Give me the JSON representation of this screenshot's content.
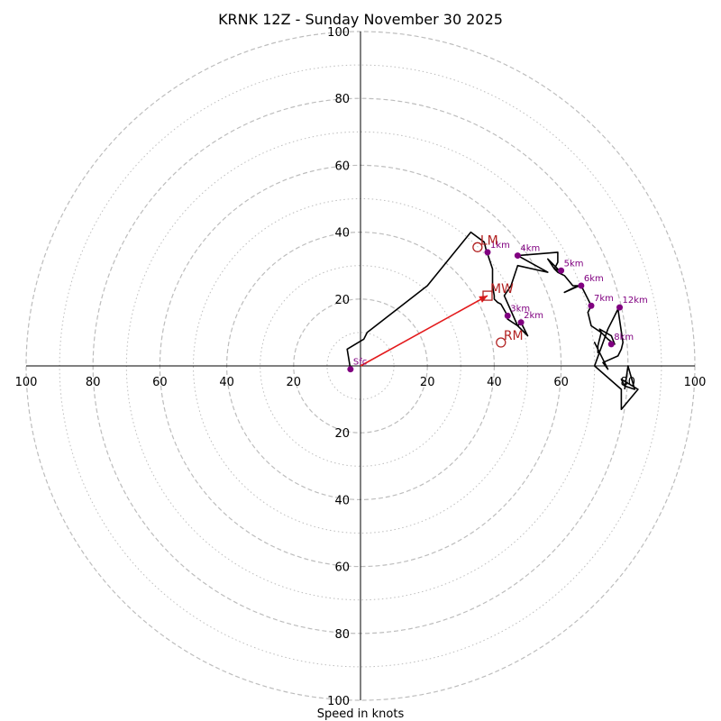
{
  "chart_data": {
    "type": "hodograph",
    "title": "KRNK 12Z - Sunday November 30 2025",
    "xlabel": "Speed in knots",
    "xlim": [
      -100,
      100
    ],
    "ylim": [
      -100,
      100
    ],
    "tick_labels": [
      "100",
      "80",
      "60",
      "40",
      "20",
      "20",
      "40",
      "60",
      "80",
      "100"
    ],
    "tick_values": [
      -100,
      -80,
      -60,
      -40,
      -20,
      20,
      40,
      60,
      80,
      100
    ],
    "ring_major": [
      20,
      40,
      60,
      80,
      100
    ],
    "ring_minor": [
      10,
      30,
      50,
      70,
      90
    ],
    "trace": [
      [
        -3,
        -1
      ],
      [
        -4,
        5
      ],
      [
        1,
        8
      ],
      [
        2,
        10
      ],
      [
        20,
        24
      ],
      [
        33,
        40
      ],
      [
        37,
        37
      ],
      [
        37.5,
        35
      ],
      [
        38,
        33.5
      ],
      [
        39.5,
        29
      ],
      [
        39.5,
        24
      ],
      [
        40,
        21
      ],
      [
        40,
        20
      ],
      [
        40.5,
        19.5
      ],
      [
        41,
        19
      ],
      [
        42,
        18.5
      ],
      [
        44,
        15
      ],
      [
        44,
        14
      ],
      [
        47,
        12
      ],
      [
        48,
        13
      ],
      [
        48.5,
        12
      ],
      [
        50,
        9
      ],
      [
        47,
        12
      ],
      [
        43,
        21
      ],
      [
        45,
        24
      ],
      [
        47,
        30
      ],
      [
        56,
        28
      ],
      [
        47,
        33
      ],
      [
        59,
        34
      ],
      [
        59,
        31
      ],
      [
        58,
        29
      ],
      [
        59.5,
        28.5
      ],
      [
        56,
        32
      ],
      [
        58,
        29
      ],
      [
        59,
        28
      ],
      [
        61,
        27
      ],
      [
        63.5,
        24
      ],
      [
        65.5,
        24
      ],
      [
        61,
        22
      ],
      [
        64,
        23.5
      ],
      [
        66,
        24
      ],
      [
        67,
        22
      ],
      [
        69,
        18
      ],
      [
        68,
        16
      ],
      [
        69,
        12
      ],
      [
        72,
        10
      ],
      [
        74,
        8
      ],
      [
        76,
        6.5
      ],
      [
        75,
        9
      ],
      [
        71.5,
        11
      ],
      [
        72,
        10
      ],
      [
        71,
        6
      ],
      [
        71,
        4
      ],
      [
        71,
        5
      ],
      [
        70,
        7
      ],
      [
        73,
        1
      ],
      [
        74,
        -1
      ],
      [
        72.5,
        1
      ],
      [
        77,
        3
      ],
      [
        78,
        5
      ],
      [
        78.5,
        7
      ],
      [
        77,
        17
      ],
      [
        76,
        15
      ],
      [
        74,
        11
      ],
      [
        70,
        0
      ],
      [
        78,
        -7
      ],
      [
        78,
        -13
      ],
      [
        83,
        -7
      ],
      [
        78,
        -4
      ],
      [
        79,
        -6
      ],
      [
        82,
        -7
      ],
      [
        80,
        0
      ],
      [
        79,
        -7
      ]
    ],
    "height_markers": [
      {
        "label": "Sfc",
        "u": -3,
        "v": -1
      },
      {
        "label": "1km",
        "u": 38,
        "v": 34
      },
      {
        "label": "2km",
        "u": 48,
        "v": 13
      },
      {
        "label": "3km",
        "u": 44,
        "v": 15
      },
      {
        "label": "4km",
        "u": 47,
        "v": 33
      },
      {
        "label": "5km",
        "u": 60,
        "v": 28.5
      },
      {
        "label": "6km",
        "u": 66,
        "v": 24
      },
      {
        "label": "7km",
        "u": 69,
        "v": 18
      },
      {
        "label": "8km",
        "u": 75,
        "v": 6.5
      },
      {
        "label": "12km",
        "u": 77.5,
        "v": 17.5
      }
    ],
    "motion_points": [
      {
        "label": "LM",
        "u": 35,
        "v": 35.5,
        "marker": "circle"
      },
      {
        "label": "MW",
        "u": 38,
        "v": 21,
        "marker": "square"
      },
      {
        "label": "RM",
        "u": 42,
        "v": 7,
        "marker": "circle"
      }
    ],
    "mean_wind_vector": {
      "u": 38,
      "v": 21
    },
    "colors": {
      "trace": "#000000",
      "markers": "#800080",
      "motion": "#b22222",
      "vector": "#e31a1c",
      "grid": "#bdbdbd"
    }
  }
}
